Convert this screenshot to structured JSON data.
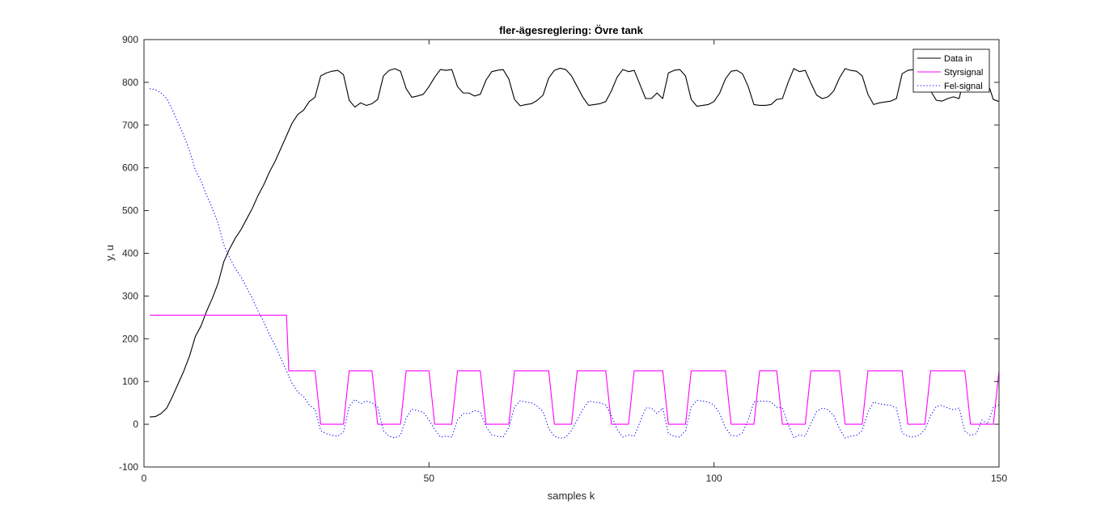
{
  "chart_data": {
    "type": "line",
    "title": "fler-ägesreglering: Övre tank",
    "xlabel": "samples k",
    "ylabel": "y, u",
    "xlim": [
      0,
      150
    ],
    "ylim": [
      -100,
      900
    ],
    "xticks": [
      0,
      50,
      100,
      150
    ],
    "yticks": [
      -100,
      0,
      100,
      200,
      300,
      400,
      500,
      600,
      700,
      800,
      900
    ],
    "grid": false,
    "legend_position": "top-right",
    "series": [
      {
        "name": "Data in",
        "color": "#000000",
        "style": "solid",
        "x": [
          1,
          2,
          3,
          4,
          5,
          6,
          7,
          8,
          9,
          10,
          11,
          12,
          13,
          14,
          15,
          16,
          17,
          18,
          19,
          20,
          21,
          22,
          23,
          24,
          25,
          26,
          27,
          28,
          29,
          30,
          31,
          32,
          33,
          34,
          35,
          36,
          37,
          38,
          39,
          40,
          41,
          42,
          43,
          44,
          45,
          46,
          47,
          48,
          49,
          50,
          51,
          52,
          53,
          54,
          55,
          56,
          57,
          58,
          59,
          60,
          61,
          62,
          63,
          64,
          65,
          66,
          67,
          68,
          69,
          70,
          71,
          72,
          73,
          74,
          75,
          76,
          77,
          78,
          79,
          80,
          81,
          82,
          83,
          84,
          85,
          86,
          87,
          88,
          89,
          90,
          91,
          92,
          93,
          94,
          95,
          96,
          97,
          98,
          99,
          100,
          101,
          102,
          103,
          104,
          105,
          106,
          107,
          108,
          109,
          110,
          111,
          112,
          113,
          114,
          115,
          116,
          117,
          118,
          119,
          120,
          121,
          122,
          123,
          124,
          125,
          126,
          127,
          128,
          129,
          130,
          131,
          132,
          133,
          134,
          135,
          136,
          137,
          138,
          139,
          140,
          141,
          142,
          143,
          144,
          145,
          146,
          147,
          148,
          149,
          150
        ],
        "y": [
          17,
          18,
          25,
          38,
          65,
          95,
          125,
          160,
          205,
          230,
          265,
          295,
          330,
          380,
          410,
          435,
          455,
          480,
          505,
          535,
          560,
          590,
          615,
          645,
          675,
          705,
          725,
          735,
          755,
          765,
          815,
          822,
          826,
          828,
          818,
          758,
          742,
          752,
          746,
          750,
          760,
          815,
          828,
          832,
          826,
          785,
          765,
          768,
          772,
          790,
          812,
          830,
          828,
          830,
          790,
          775,
          775,
          768,
          772,
          805,
          825,
          828,
          830,
          808,
          760,
          745,
          748,
          750,
          758,
          770,
          810,
          828,
          833,
          830,
          815,
          790,
          765,
          746,
          748,
          750,
          755,
          780,
          812,
          830,
          825,
          828,
          795,
          762,
          762,
          775,
          762,
          822,
          828,
          830,
          815,
          760,
          744,
          746,
          748,
          755,
          775,
          808,
          826,
          828,
          820,
          790,
          748,
          746,
          746,
          748,
          760,
          762,
          800,
          832,
          825,
          828,
          798,
          770,
          762,
          766,
          780,
          810,
          832,
          828,
          826,
          815,
          772,
          748,
          752,
          754,
          756,
          762,
          820,
          828,
          830,
          826,
          812,
          780,
          758,
          756,
          762,
          766,
          762,
          816,
          826,
          822,
          790,
          800,
          760,
          755
        ]
      },
      {
        "name": "Styrsignal",
        "color": "#ff00ff",
        "style": "solid",
        "x": [
          1,
          25,
          25.4,
          26,
          30,
          31,
          35,
          36,
          37,
          40,
          41,
          42,
          45,
          46,
          47,
          50,
          51,
          52,
          54,
          55,
          56,
          59,
          60,
          61,
          64,
          65,
          66,
          71,
          72,
          73,
          75,
          76,
          77,
          81,
          82,
          83,
          85,
          86,
          87,
          91,
          92,
          93,
          95,
          96,
          97,
          102,
          103,
          104,
          107,
          108,
          109,
          111,
          112,
          113,
          116,
          117,
          118,
          122,
          123,
          124,
          126,
          127,
          128,
          133,
          134,
          135,
          137,
          138,
          139,
          144,
          145,
          146,
          149,
          150
        ],
        "y": [
          255,
          255,
          125,
          125,
          125,
          0,
          0,
          125,
          125,
          125,
          0,
          0,
          0,
          125,
          125,
          125,
          0,
          0,
          0,
          125,
          125,
          125,
          0,
          0,
          0,
          125,
          125,
          125,
          0,
          0,
          0,
          125,
          125,
          125,
          0,
          0,
          0,
          125,
          125,
          125,
          0,
          0,
          0,
          125,
          125,
          125,
          0,
          0,
          0,
          125,
          125,
          125,
          0,
          0,
          0,
          125,
          125,
          125,
          0,
          0,
          0,
          125,
          125,
          125,
          0,
          0,
          0,
          125,
          125,
          125,
          0,
          0,
          0,
          125
        ]
      },
      {
        "name": "Fel-signal",
        "color": "#0000ff",
        "style": "dotted",
        "x": [
          1,
          2,
          3,
          4,
          5,
          6,
          7,
          8,
          9,
          10,
          11,
          12,
          13,
          14,
          15,
          16,
          17,
          18,
          19,
          20,
          21,
          22,
          23,
          24,
          25,
          26,
          27,
          28,
          29,
          30,
          31,
          32,
          33,
          34,
          35,
          36,
          37,
          38,
          39,
          40,
          41,
          42,
          43,
          44,
          45,
          46,
          47,
          48,
          49,
          50,
          51,
          52,
          53,
          54,
          55,
          56,
          57,
          58,
          59,
          60,
          61,
          62,
          63,
          64,
          65,
          66,
          67,
          68,
          69,
          70,
          71,
          72,
          73,
          74,
          75,
          76,
          77,
          78,
          79,
          80,
          81,
          82,
          83,
          84,
          85,
          86,
          87,
          88,
          89,
          90,
          91,
          92,
          93,
          94,
          95,
          96,
          97,
          98,
          99,
          100,
          101,
          102,
          103,
          104,
          105,
          106,
          107,
          108,
          109,
          110,
          111,
          112,
          113,
          114,
          115,
          116,
          117,
          118,
          119,
          120,
          121,
          122,
          123,
          124,
          125,
          126,
          127,
          128,
          129,
          130,
          131,
          132,
          133,
          134,
          135,
          136,
          137,
          138,
          139,
          140,
          141,
          142,
          143,
          144,
          145,
          146,
          147,
          148,
          149,
          150
        ],
        "y": [
          785,
          783,
          775,
          762,
          735,
          705,
          675,
          640,
          595,
          570,
          535,
          505,
          470,
          420,
          390,
          365,
          345,
          320,
          295,
          265,
          240,
          210,
          185,
          155,
          125,
          95,
          75,
          65,
          45,
          35,
          -15,
          -22,
          -26,
          -28,
          -18,
          42,
          58,
          48,
          54,
          50,
          40,
          -15,
          -28,
          -32,
          -26,
          15,
          35,
          32,
          28,
          10,
          -12,
          -30,
          -28,
          -30,
          10,
          25,
          25,
          32,
          28,
          -5,
          -25,
          -28,
          -30,
          -8,
          40,
          55,
          52,
          50,
          42,
          30,
          -10,
          -28,
          -33,
          -30,
          -15,
          10,
          35,
          54,
          52,
          50,
          45,
          20,
          -12,
          -30,
          -25,
          -28,
          5,
          38,
          38,
          25,
          38,
          -22,
          -28,
          -30,
          -15,
          40,
          56,
          54,
          52,
          45,
          25,
          -8,
          -26,
          -28,
          -20,
          10,
          52,
          54,
          54,
          52,
          40,
          38,
          0,
          -32,
          -25,
          -28,
          2,
          30,
          38,
          34,
          20,
          -10,
          -32,
          -28,
          -26,
          -15,
          28,
          52,
          48,
          46,
          44,
          38,
          -20,
          -28,
          -30,
          -26,
          -12,
          20,
          42,
          44,
          38,
          34,
          38,
          -16,
          -26,
          -22,
          10,
          0,
          40,
          45
        ]
      }
    ]
  }
}
